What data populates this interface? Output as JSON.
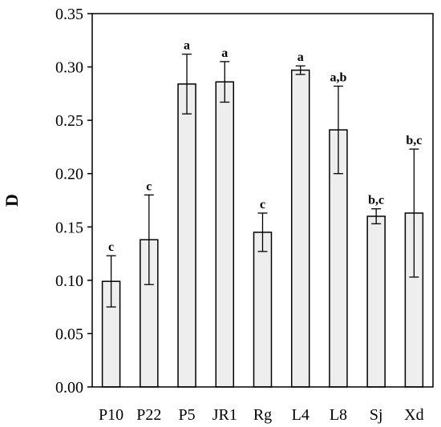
{
  "chart_data": {
    "type": "bar",
    "title": "",
    "xlabel": "",
    "ylabel": "D",
    "ylim": [
      0,
      0.35
    ],
    "yticks": [
      "0.00",
      "0.05",
      "0.10",
      "0.15",
      "0.20",
      "0.25",
      "0.30",
      "0.35"
    ],
    "grid": false,
    "legend": "none",
    "bar_fill": "#eeeeee",
    "bar_stroke": "#000000",
    "categories": [
      "P10",
      "P22",
      "P5",
      "JR1",
      "Rg",
      "L4",
      "L8",
      "Sj",
      "Xd"
    ],
    "values": [
      0.099,
      0.138,
      0.284,
      0.286,
      0.145,
      0.297,
      0.241,
      0.16,
      0.163
    ],
    "errors": [
      0.024,
      0.042,
      0.028,
      0.019,
      0.018,
      0.004,
      0.041,
      0.007,
      0.06
    ],
    "significance": [
      "c",
      "c",
      "a",
      "a",
      "c",
      "a",
      "a,b",
      "b,c",
      "b,c"
    ]
  }
}
